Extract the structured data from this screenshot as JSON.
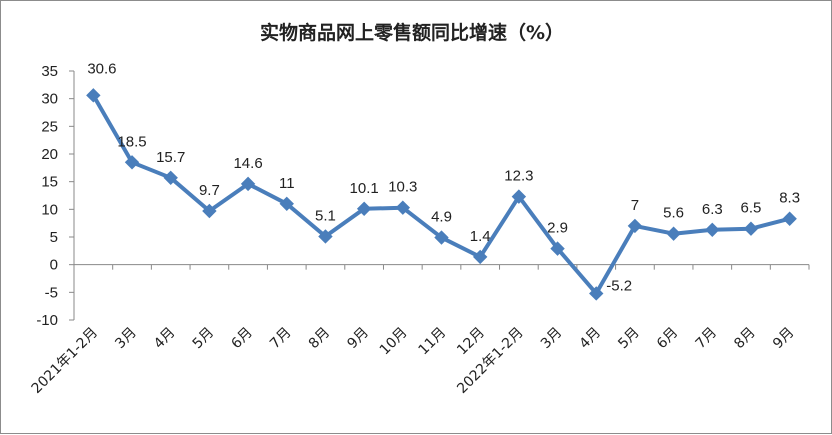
{
  "chart_data": {
    "type": "line",
    "title": "实物商品网上零售额同比增速（%）",
    "xlabel": "",
    "ylabel": "",
    "categories": [
      "2021年1-2月",
      "3月",
      "4月",
      "5月",
      "6月",
      "7月",
      "8月",
      "9月",
      "10月",
      "11月",
      "12月",
      "2022年1-2月",
      "3月",
      "4月",
      "5月",
      "6月",
      "7月",
      "8月",
      "9月"
    ],
    "series": [
      {
        "values": [
          30.6,
          18.5,
          15.7,
          9.7,
          14.6,
          11,
          5.1,
          10.1,
          10.3,
          4.9,
          1.4,
          12.3,
          2.9,
          -5.2,
          7,
          5.6,
          6.3,
          6.5,
          8.3
        ],
        "labels": [
          "30.6",
          "18.5",
          "15.7",
          "9.7",
          "14.6",
          "11",
          "5.1",
          "10.1",
          "10.3",
          "4.9",
          "1.4",
          "12.3",
          "2.9",
          "-5.2",
          "7",
          "5.6",
          "6.3",
          "6.5",
          "8.3"
        ]
      }
    ],
    "ylim": [
      -10,
      35
    ],
    "yticks": [
      -10,
      -5,
      0,
      5,
      10,
      15,
      20,
      25,
      30,
      35
    ],
    "grid": false,
    "legend": "none",
    "colors": {
      "line": "#4a7ebb",
      "marker": "#4a7ebb",
      "axis": "#888888",
      "text": "#222222"
    }
  }
}
